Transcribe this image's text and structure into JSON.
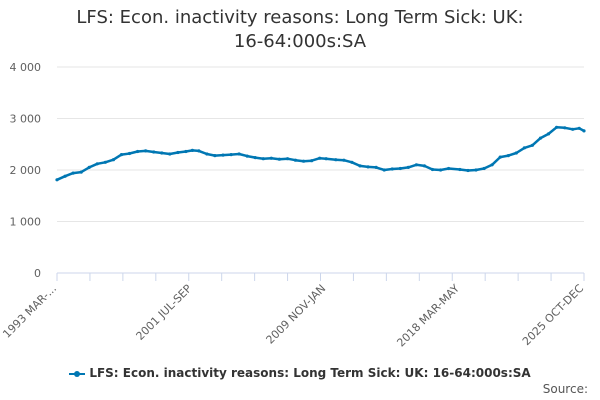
{
  "colors": {
    "series": "#0077b3",
    "grid": "#e6e6e6",
    "axis": "#ccd6eb"
  },
  "legend_label": "LFS: Econ. inactivity reasons: Long Term Sick: UK: 16-64:000s:SA",
  "source_label": "Source:",
  "chart_data": {
    "type": "line",
    "title": "LFS: Econ. inactivity reasons: Long Term Sick: UK: 16-64:000s:SA",
    "xlabel": "",
    "ylabel": "",
    "ylim": [
      0,
      4000
    ],
    "y_ticks": [
      0,
      1000,
      2000,
      3000,
      4000
    ],
    "y_tick_labels": [
      "0",
      "1 000",
      "2 000",
      "3 000",
      "4 000"
    ],
    "x_range": [
      1993.2,
      2025.9
    ],
    "x_ticks": [
      1993.2,
      2001.6,
      2009.9,
      2018.2,
      2025.9
    ],
    "x_tick_labels": [
      "1993 MAR-...",
      "2001 JUL-SEP",
      "2009 NOV-JAN",
      "2018 MAR-MAY",
      "2025 OCT-DEC"
    ],
    "grid": true,
    "legend_position": "bottom",
    "series": [
      {
        "name": "LFS: Econ. inactivity reasons: Long Term Sick: UK: 16-64:000s:SA",
        "x": [
          1993.2,
          1993.7,
          1994.2,
          1994.7,
          1995.2,
          1995.7,
          1996.2,
          1996.7,
          1997.2,
          1997.7,
          1998.2,
          1998.7,
          1999.2,
          1999.7,
          2000.2,
          2000.7,
          2001.2,
          2001.6,
          2002.0,
          2002.5,
          2003.0,
          2003.5,
          2004.0,
          2004.5,
          2005.0,
          2005.5,
          2006.0,
          2006.5,
          2007.0,
          2007.5,
          2008.0,
          2008.5,
          2009.0,
          2009.5,
          2009.9,
          2010.5,
          2011.0,
          2011.5,
          2012.0,
          2012.5,
          2013.0,
          2013.5,
          2014.0,
          2014.5,
          2015.0,
          2015.5,
          2016.0,
          2016.5,
          2017.0,
          2017.5,
          2018.2,
          2018.7,
          2019.2,
          2019.7,
          2020.2,
          2020.7,
          2021.2,
          2021.7,
          2022.2,
          2022.7,
          2023.2,
          2023.7,
          2024.2,
          2024.7,
          2025.2,
          2025.6,
          2025.9
        ],
        "values": [
          1810,
          1880,
          1940,
          1960,
          2050,
          2120,
          2150,
          2200,
          2300,
          2320,
          2360,
          2370,
          2350,
          2330,
          2310,
          2340,
          2360,
          2380,
          2370,
          2310,
          2280,
          2290,
          2300,
          2310,
          2270,
          2240,
          2220,
          2230,
          2210,
          2220,
          2190,
          2170,
          2180,
          2230,
          2220,
          2200,
          2190,
          2150,
          2080,
          2060,
          2050,
          2000,
          2020,
          2030,
          2050,
          2100,
          2080,
          2010,
          2000,
          2030,
          2010,
          1990,
          2000,
          2030,
          2100,
          2250,
          2280,
          2330,
          2430,
          2480,
          2620,
          2700,
          2830,
          2820,
          2790,
          2810,
          2760
        ]
      }
    ]
  }
}
